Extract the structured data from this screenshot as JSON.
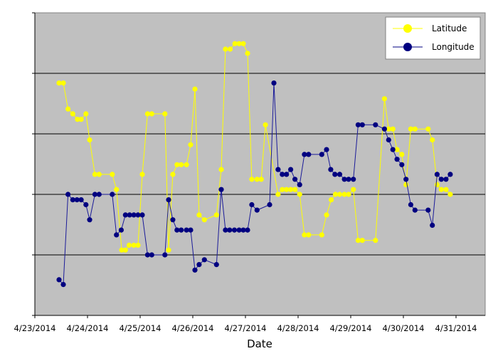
{
  "chart_data": {
    "type": "line",
    "title": "",
    "xlabel": "Date",
    "ylabel": "",
    "x_tick_labels": [
      "4/23/2014",
      "4/24/2014",
      "4/25/2014",
      "4/26/2014",
      "4/27/2014",
      "4/28/2014",
      "4/29/2014",
      "4/30/2014",
      "4/31/2014"
    ],
    "xlim_days": [
      0,
      8.5
    ],
    "ylim": [
      0,
      5
    ],
    "y_tick_labels": [],
    "y_gridlines": [
      1,
      2,
      3,
      4,
      5
    ],
    "grid": true,
    "plot_background": "#c0c0c0",
    "legend_position": "top-right",
    "note": "Y axis has no tick labels; y values are in relative gridline units (0 = bottom, 5 = top). x values are days since 4/23/2014.",
    "series": [
      {
        "name": "Latitude",
        "color": "#ffff00",
        "x": [
          0.46,
          0.54,
          0.63,
          0.72,
          0.81,
          0.88,
          0.97,
          1.04,
          1.14,
          1.22,
          1.47,
          1.55,
          1.65,
          1.72,
          1.79,
          1.88,
          1.96,
          2.04,
          2.14,
          2.22,
          2.47,
          2.54,
          2.62,
          2.7,
          2.78,
          2.88,
          2.96,
          3.04,
          3.12,
          3.22,
          3.45,
          3.54,
          3.62,
          3.71,
          3.8,
          3.88,
          3.96,
          4.04,
          4.12,
          4.22,
          4.3,
          4.38,
          4.62,
          4.7,
          4.78,
          4.86,
          4.94,
          5.03,
          5.12,
          5.2,
          5.45,
          5.54,
          5.63,
          5.71,
          5.79,
          5.88,
          5.96,
          6.05,
          6.14,
          6.22,
          6.47,
          6.64,
          6.72,
          6.8,
          6.88,
          6.97,
          7.05,
          7.14,
          7.22,
          7.47,
          7.55,
          7.64,
          7.72,
          7.81,
          7.89
        ],
        "y": [
          3.84,
          3.84,
          3.41,
          3.33,
          3.24,
          3.24,
          3.33,
          2.9,
          2.33,
          2.33,
          2.33,
          2.08,
          1.08,
          1.08,
          1.16,
          1.16,
          1.16,
          2.33,
          3.33,
          3.33,
          3.33,
          1.08,
          2.33,
          2.49,
          2.49,
          2.49,
          2.82,
          3.74,
          1.66,
          1.58,
          1.66,
          2.41,
          4.4,
          4.4,
          4.49,
          4.49,
          4.49,
          4.33,
          2.25,
          2.25,
          2.25,
          3.15,
          2.0,
          2.08,
          2.08,
          2.08,
          2.08,
          2.0,
          1.33,
          1.33,
          1.33,
          1.66,
          1.91,
          2.0,
          2.0,
          2.0,
          2.0,
          2.08,
          1.24,
          1.24,
          1.24,
          3.58,
          3.08,
          3.08,
          2.74,
          2.66,
          2.16,
          3.08,
          3.08,
          3.08,
          2.9,
          2.16,
          2.08,
          2.08,
          2.0
        ]
      },
      {
        "name": "Longitude",
        "color": "#000080",
        "x": [
          0.46,
          0.54,
          0.63,
          0.72,
          0.8,
          0.88,
          0.97,
          1.04,
          1.14,
          1.22,
          1.47,
          1.55,
          1.64,
          1.72,
          1.8,
          1.88,
          1.96,
          2.04,
          2.14,
          2.22,
          2.47,
          2.54,
          2.62,
          2.7,
          2.78,
          2.88,
          2.96,
          3.04,
          3.12,
          3.22,
          3.45,
          3.54,
          3.62,
          3.7,
          3.79,
          3.88,
          3.96,
          4.04,
          4.12,
          4.22,
          4.46,
          4.54,
          4.62,
          4.7,
          4.78,
          4.86,
          4.94,
          5.03,
          5.12,
          5.2,
          5.45,
          5.54,
          5.62,
          5.7,
          5.79,
          5.88,
          5.96,
          6.05,
          6.14,
          6.22,
          6.47,
          6.64,
          6.72,
          6.8,
          6.88,
          6.97,
          7.05,
          7.14,
          7.22,
          7.47,
          7.55,
          7.64,
          7.72,
          7.81,
          7.89
        ],
        "y": [
          0.59,
          0.51,
          2.0,
          1.91,
          1.91,
          1.91,
          1.83,
          1.58,
          2.0,
          2.0,
          2.0,
          1.33,
          1.41,
          1.66,
          1.66,
          1.66,
          1.66,
          1.66,
          1.0,
          1.0,
          1.0,
          1.91,
          1.58,
          1.41,
          1.41,
          1.41,
          1.41,
          0.75,
          0.84,
          0.92,
          0.84,
          2.08,
          1.41,
          1.41,
          1.41,
          1.41,
          1.41,
          1.41,
          1.83,
          1.74,
          1.83,
          3.84,
          2.41,
          2.33,
          2.33,
          2.41,
          2.25,
          2.16,
          2.66,
          2.66,
          2.66,
          2.74,
          2.41,
          2.33,
          2.33,
          2.25,
          2.25,
          2.25,
          3.15,
          3.15,
          3.15,
          3.08,
          2.9,
          2.74,
          2.58,
          2.49,
          2.25,
          1.83,
          1.74,
          1.74,
          1.49,
          2.33,
          2.25,
          2.25,
          2.33
        ]
      }
    ]
  },
  "legend": {
    "items": [
      {
        "label": "Latitude",
        "color": "#ffff00"
      },
      {
        "label": "Longitude",
        "color": "#000080"
      }
    ]
  },
  "axes": {
    "x_title": "Date"
  }
}
